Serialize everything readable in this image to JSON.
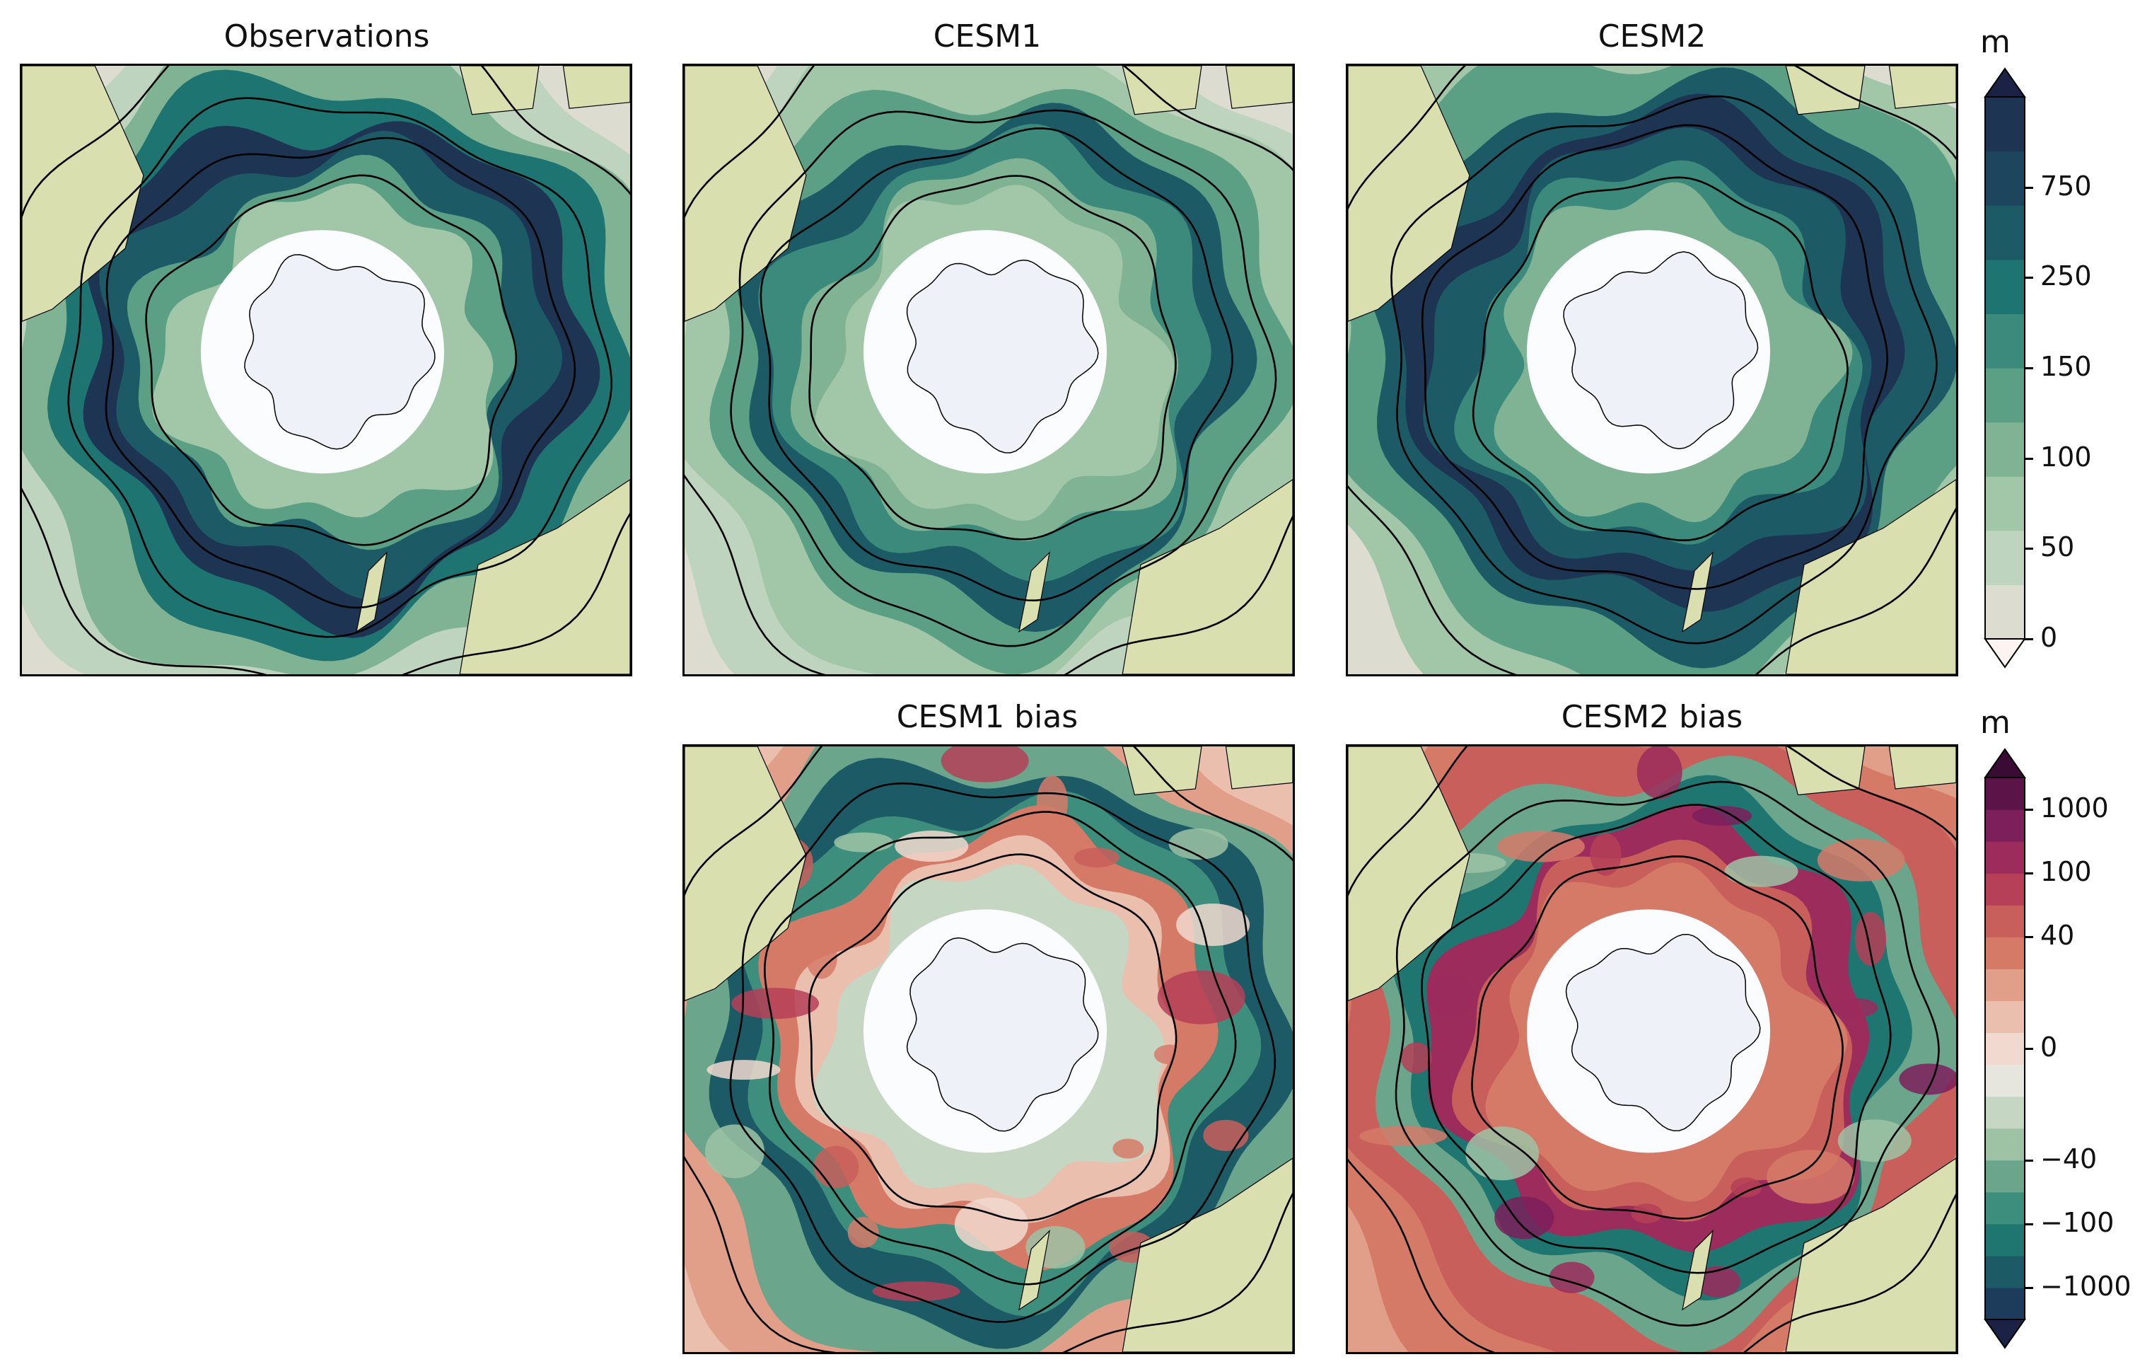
{
  "panels": {
    "observations": {
      "title": "Observations"
    },
    "cesm1": {
      "title": "CESM1"
    },
    "cesm2": {
      "title": "CESM2"
    },
    "cesm1_bias": {
      "title": "CESM1 bias"
    },
    "cesm2_bias": {
      "title": "CESM2 bias"
    }
  },
  "colorbar_top": {
    "unit": "m",
    "ticks": [
      "0",
      "50",
      "100",
      "150",
      "250",
      "750"
    ],
    "colors": [
      "#fdf3f1",
      "#dcddd0",
      "#bfd4bf",
      "#a1c6a8",
      "#7fb394",
      "#5b9f84",
      "#3b8a7b",
      "#1e7470",
      "#1c5b66",
      "#1d465e",
      "#1d3453",
      "#1b2246"
    ]
  },
  "colorbar_bottom": {
    "unit": "m",
    "ticks": [
      "−1000",
      "−100",
      "−40",
      "0",
      "40",
      "100",
      "1000"
    ],
    "colors": [
      "#1b2246",
      "#1d3c5b",
      "#1c5a66",
      "#1f7671",
      "#3d8e7d",
      "#6aa58c",
      "#9dc3a4",
      "#c5d6c3",
      "#e6e6de",
      "#f1d9cf",
      "#ebbfae",
      "#e19e89",
      "#d67a68",
      "#c85f5b",
      "#b54057",
      "#9b2c5c",
      "#7d1f5a",
      "#5a1447",
      "#3a0c34"
    ]
  },
  "colors": {
    "land": "#d9dfae",
    "ice": "#eef1f8",
    "contour": "#000000"
  }
}
